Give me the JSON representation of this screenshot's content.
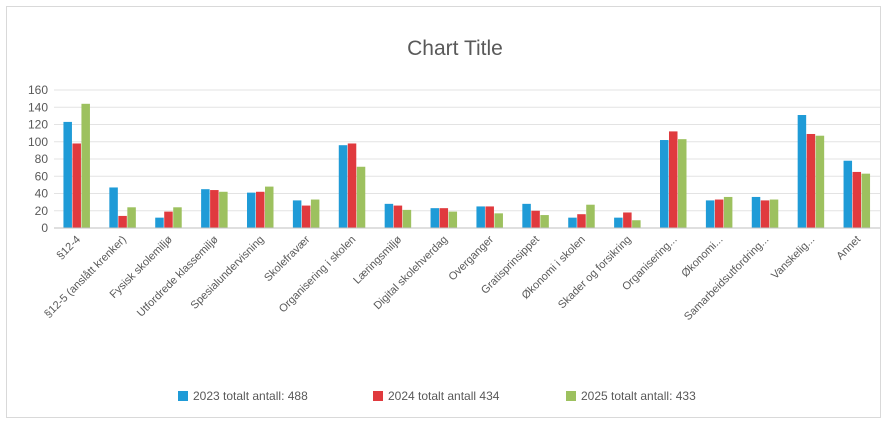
{
  "chart_data": {
    "type": "bar",
    "title": "Chart Title",
    "xlabel": "",
    "ylabel": "",
    "ylim": [
      0,
      160
    ],
    "yticks": [
      0,
      20,
      40,
      60,
      80,
      100,
      120,
      140,
      160
    ],
    "grid": true,
    "legend_position": "bottom",
    "categories": [
      "§12-4",
      "§12-5 (anslått krenker)",
      "Fysisk skolemiljø",
      "Utfordrede klassemiljø",
      "Spesialundervisning",
      "Skolefravær",
      "Organisering i skolen",
      "Læringsmiljø",
      "Digital skolehverdag",
      "Overganger",
      "Gratisprinsippet",
      "Økonomi i skolen",
      "Skader og forsikring",
      "Organisering...",
      "Økonomi...",
      "Samarbeidsutfordring...",
      "Vanskelig...",
      "Annet"
    ],
    "series": [
      {
        "name": "2023 totalt antall: 488",
        "color": "#1f9bd7",
        "values": [
          123,
          47,
          12,
          45,
          41,
          32,
          96,
          28,
          23,
          25,
          28,
          12,
          12,
          102,
          32,
          36,
          131,
          78
        ]
      },
      {
        "name": "2024 totalt antall 434",
        "color": "#e03a3e",
        "values": [
          98,
          14,
          19,
          44,
          42,
          26,
          98,
          26,
          23,
          25,
          20,
          16,
          18,
          112,
          33,
          32,
          109,
          65
        ]
      },
      {
        "name": "2025 totalt antall: 433",
        "color": "#9dc15f",
        "values": [
          144,
          24,
          24,
          42,
          48,
          33,
          71,
          21,
          19,
          17,
          15,
          27,
          9,
          103,
          36,
          33,
          107,
          63
        ]
      }
    ]
  }
}
